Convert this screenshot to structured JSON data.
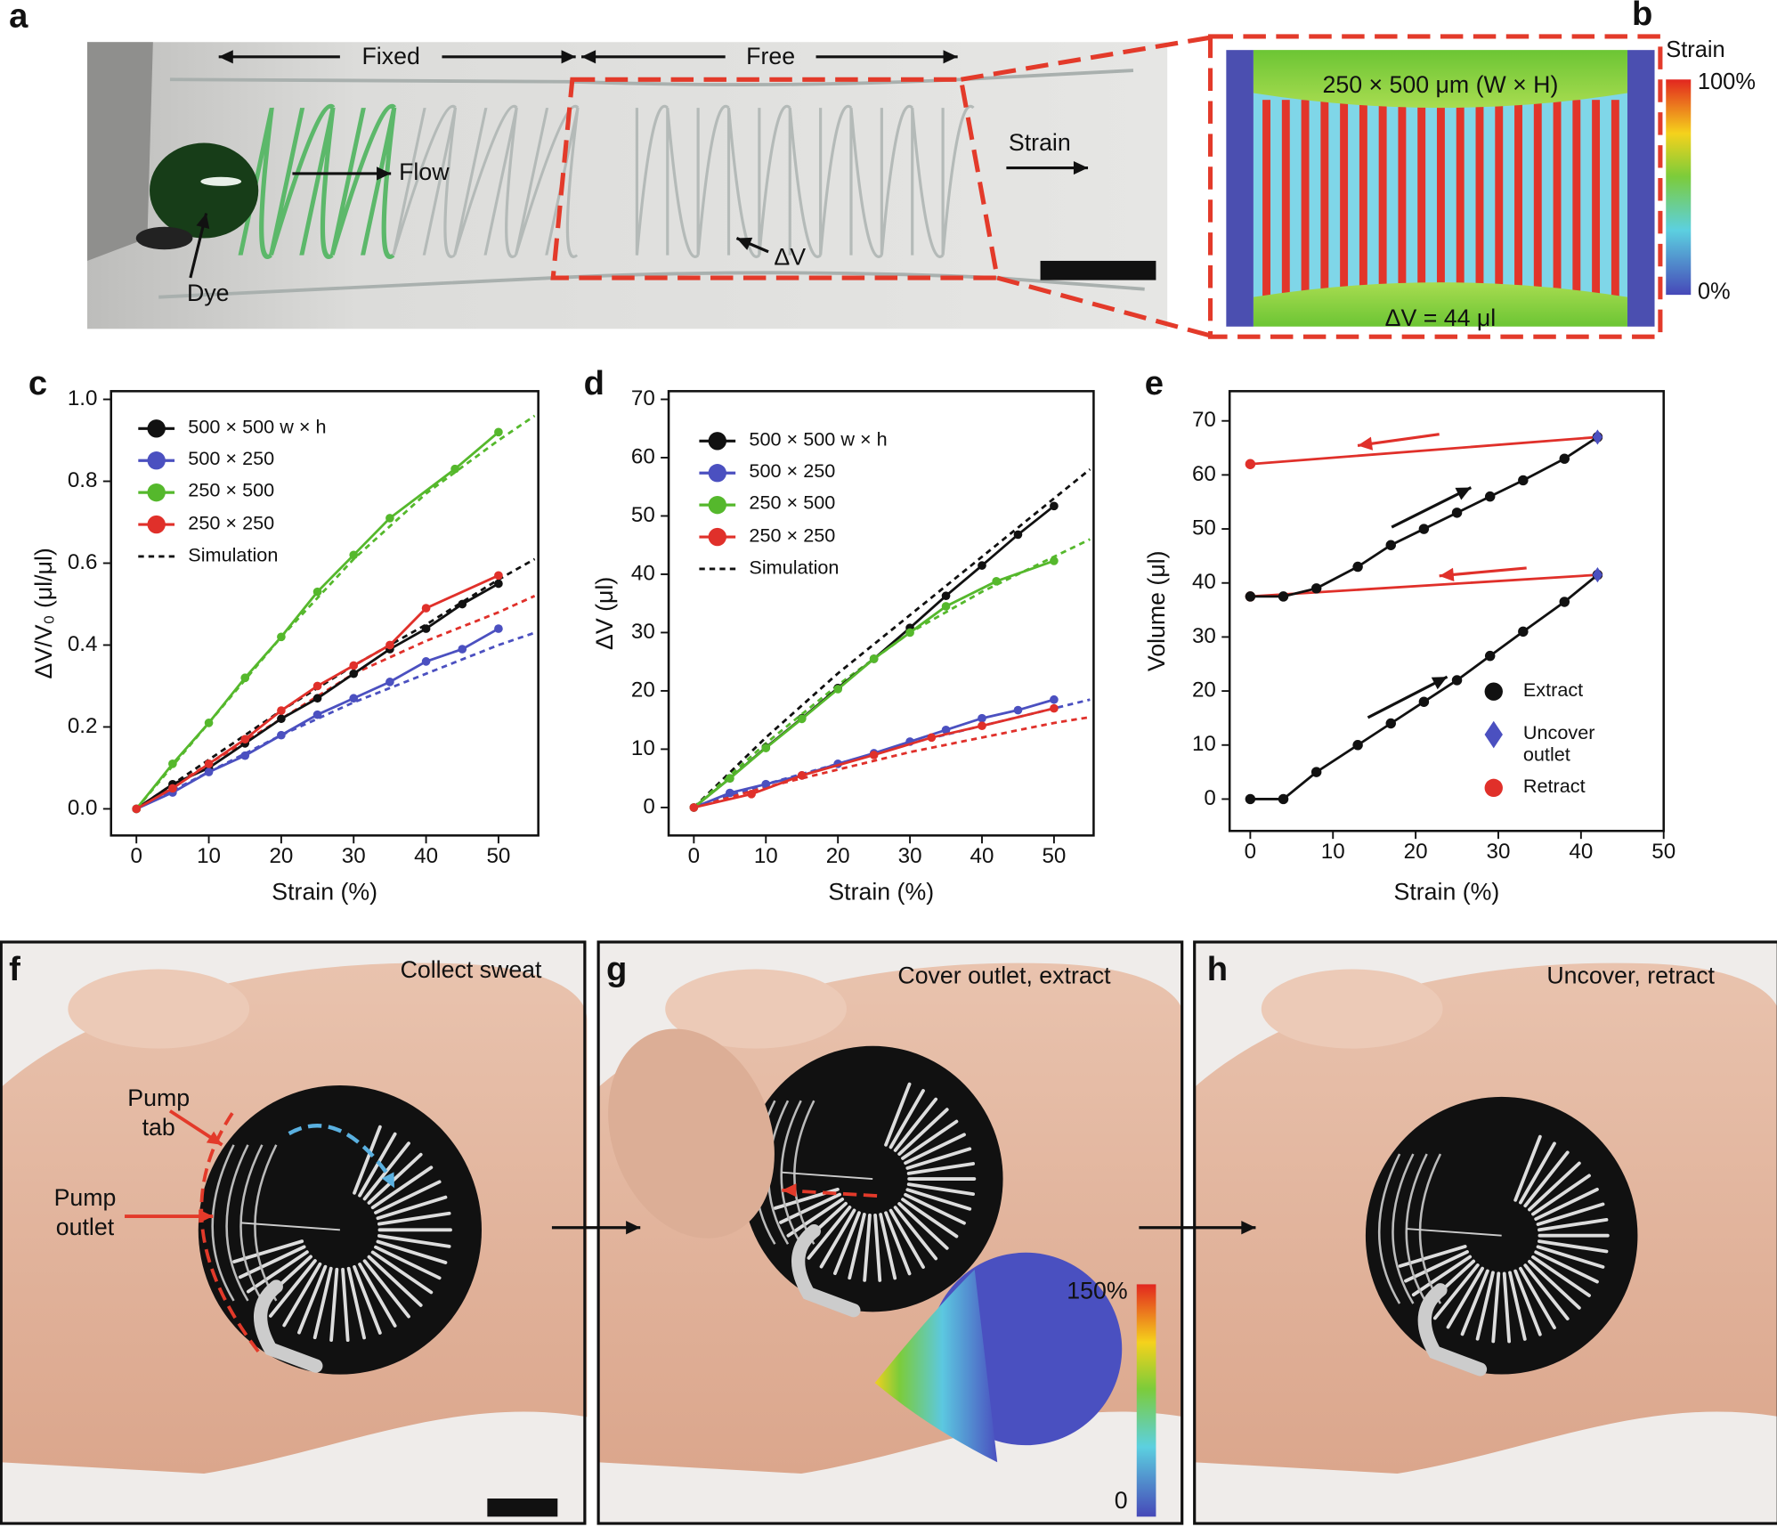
{
  "panel_a": {
    "label": "a",
    "fixed": "Fixed",
    "free": "Free",
    "flow": "Flow",
    "strain": "Strain",
    "dye": "Dye",
    "delta_v": "ΔV"
  },
  "panel_b": {
    "label": "b",
    "dimensions": "250 × 500 μm (W × H)",
    "delta_v": "ΔV = 44 μl",
    "colorbar_title": "Strain",
    "colorbar_max": "100%",
    "colorbar_min": "0%"
  },
  "chart_data": [
    {
      "type": "line",
      "label": "c",
      "xlabel": "Strain (%)",
      "ylabel": "ΔV/V₀ (μl/μl)",
      "xlim": [
        -3.5,
        55.5
      ],
      "xticks": [
        0,
        10,
        20,
        30,
        40,
        50
      ],
      "ylim": [
        -0.065,
        1.02
      ],
      "yticks": [
        {
          "value": 0,
          "label": "0.0"
        },
        0.2,
        0.4,
        0.6,
        0.8,
        {
          "value": 1,
          "label": "1.0"
        }
      ],
      "legend": "upper left",
      "series": [
        {
          "name": "500 × 500 w × h",
          "color": "#111111",
          "x": [
            0,
            5,
            10,
            15,
            20,
            25,
            30,
            35,
            40,
            45,
            50
          ],
          "values": [
            0,
            0.06,
            0.1,
            0.16,
            0.22,
            0.27,
            0.33,
            0.39,
            0.44,
            0.5,
            0.55
          ]
        },
        {
          "name": "500 × 250",
          "color": "#4b50c0",
          "x": [
            0,
            5,
            10,
            15,
            20,
            25,
            30,
            35,
            40,
            45,
            50
          ],
          "values": [
            0,
            0.04,
            0.09,
            0.13,
            0.18,
            0.23,
            0.27,
            0.31,
            0.36,
            0.39,
            0.44
          ]
        },
        {
          "name": "250 × 500",
          "color": "#55b82c",
          "x": [
            0,
            5,
            10,
            15,
            20,
            25,
            30,
            35,
            44,
            50
          ],
          "values": [
            0,
            0.11,
            0.21,
            0.32,
            0.42,
            0.53,
            0.62,
            0.71,
            0.83,
            0.92
          ]
        },
        {
          "name": "250 × 250",
          "color": "#e0302a",
          "x": [
            0,
            5,
            10,
            15,
            20,
            25,
            30,
            35,
            40,
            50
          ],
          "values": [
            0,
            0.05,
            0.11,
            0.17,
            0.24,
            0.3,
            0.35,
            0.4,
            0.49,
            0.57
          ]
        }
      ],
      "simulation": {
        "name": "Simulation",
        "x": [
          0,
          10,
          20,
          30,
          40,
          50,
          55
        ],
        "series": [
          {
            "color": "#111111",
            "values": [
              0,
              0.12,
              0.24,
              0.35,
              0.45,
              0.56,
              0.61
            ]
          },
          {
            "color": "#4b50c0",
            "values": [
              0,
              0.09,
              0.18,
              0.26,
              0.33,
              0.4,
              0.43
            ]
          },
          {
            "color": "#55b82c",
            "values": [
              0,
              0.21,
              0.42,
              0.61,
              0.77,
              0.9,
              0.96
            ]
          },
          {
            "color": "#e0302a",
            "values": [
              0,
              0.11,
              0.22,
              0.33,
              0.41,
              0.48,
              0.52
            ]
          }
        ]
      }
    },
    {
      "type": "line",
      "label": "d",
      "xlabel": "Strain (%)",
      "ylabel": "ΔV (μl)",
      "xlim": [
        -3.5,
        55.5
      ],
      "xticks": [
        0,
        10,
        20,
        30,
        40,
        50
      ],
      "ylim": [
        -4.8,
        71.4
      ],
      "yticks": [
        0,
        10,
        20,
        30,
        40,
        50,
        60,
        70
      ],
      "legend": "upper left",
      "series": [
        {
          "name": "500 × 500 w × h",
          "color": "#111111",
          "x": [
            0,
            5,
            10,
            15,
            20,
            25,
            30,
            35,
            40,
            45,
            50
          ],
          "values": [
            0,
            5,
            10.3,
            15.3,
            20.5,
            25.5,
            30.8,
            36.3,
            41.5,
            46.8,
            51.7
          ]
        },
        {
          "name": "500 × 250",
          "color": "#4b50c0",
          "x": [
            0,
            5,
            10,
            15,
            20,
            25,
            30,
            35,
            40,
            45,
            50
          ],
          "values": [
            0,
            2.5,
            4,
            5.5,
            7.5,
            9.3,
            11.3,
            13.3,
            15.3,
            16.7,
            18.5
          ]
        },
        {
          "name": "250 × 500",
          "color": "#55b82c",
          "x": [
            0,
            5,
            10,
            15,
            20,
            25,
            30,
            35,
            42,
            50
          ],
          "values": [
            0,
            5,
            10.2,
            15.2,
            20.3,
            25.5,
            30,
            34.5,
            38.8,
            42.3
          ]
        },
        {
          "name": "250 × 250",
          "color": "#e0302a",
          "x": [
            0,
            8,
            15,
            25,
            33,
            40,
            50
          ],
          "values": [
            0,
            2.3,
            5.5,
            9,
            12,
            14,
            17
          ]
        }
      ],
      "simulation": {
        "name": "Simulation",
        "x": [
          0,
          10,
          20,
          30,
          40,
          50,
          55
        ],
        "series": [
          {
            "color": "#111111",
            "values": [
              0,
              12,
              23,
              33,
              43,
              53,
              58
            ]
          },
          {
            "color": "#4b50c0",
            "values": [
              0,
              4,
              7.5,
              11,
              14,
              17,
              18.5
            ]
          },
          {
            "color": "#55b82c",
            "values": [
              0,
              11,
              21,
              30,
              37,
              43,
              46
            ]
          },
          {
            "color": "#e0302a",
            "values": [
              0,
              3.5,
              6.5,
              9.5,
              12,
              14.5,
              15.5
            ]
          }
        ]
      }
    },
    {
      "type": "line",
      "label": "e",
      "xlabel": "Strain (%)",
      "ylabel": "Volume (μl)",
      "xlim": [
        -2.5,
        50
      ],
      "xticks": [
        0,
        10,
        20,
        30,
        40,
        50
      ],
      "ylim": [
        -5.9,
        75.5
      ],
      "yticks": [
        0,
        10,
        20,
        30,
        40,
        50,
        60,
        70
      ],
      "legend": "lower right",
      "series": [
        {
          "name": "Retract",
          "color": "#e0302a",
          "marker": "circle",
          "x": [
            42,
            0,
            null,
            42,
            0
          ],
          "values": [
            41.5,
            37.5,
            null,
            67,
            62
          ]
        },
        {
          "name": "Extract",
          "color": "#111111",
          "marker": "circle",
          "x": [
            0,
            4,
            8,
            13,
            17,
            21,
            25,
            29,
            33,
            38,
            42,
            null,
            0,
            4,
            8,
            13,
            17,
            21,
            25,
            29,
            33,
            38,
            42
          ],
          "values": [
            0,
            0,
            5,
            10,
            14,
            18,
            22,
            26.5,
            31,
            36.5,
            41.5,
            null,
            37.5,
            37.5,
            39,
            43,
            47,
            50,
            53,
            56,
            59,
            63,
            67
          ]
        },
        {
          "name": "Uncover outlet",
          "color": "#4b50c0",
          "marker": "diamond",
          "line": false,
          "x": [
            42,
            42
          ],
          "values": [
            41.5,
            67
          ]
        }
      ]
    }
  ],
  "panel_f": {
    "label": "f",
    "caption": "Collect sweat",
    "pump_tab": [
      "Pump",
      "tab"
    ],
    "pump_outlet": [
      "Pump",
      "outlet"
    ]
  },
  "panel_g": {
    "label": "g",
    "caption": "Cover outlet, extract",
    "colorbar_max": "150%",
    "colorbar_min": "0"
  },
  "panel_h": {
    "label": "h",
    "caption": "Uncover, retract"
  }
}
